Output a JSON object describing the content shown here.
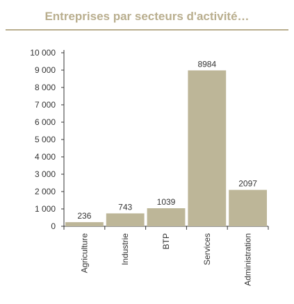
{
  "title": "Entreprises par secteurs d'activité…",
  "colors": {
    "bar": "#bdb698",
    "title": "#b9ae8e",
    "axis": "#333333"
  },
  "chart_data": {
    "type": "bar",
    "title": "Entreprises par secteurs d'activité…",
    "categories": [
      "Agriculture",
      "Industrie",
      "BTP",
      "Services",
      "Administration"
    ],
    "values": [
      236,
      743,
      1039,
      8984,
      2097
    ],
    "data_labels": [
      "236",
      "743",
      "1039",
      "8984",
      "2097"
    ],
    "yticks": [
      0,
      1000,
      2000,
      3000,
      4000,
      5000,
      6000,
      7000,
      8000,
      9000,
      10000
    ],
    "ytick_labels": [
      "0",
      "1 000",
      "2 000",
      "3 000",
      "4 000",
      "5 000",
      "6 000",
      "7 000",
      "8 000",
      "9 000",
      "10 000"
    ],
    "ylim": [
      0,
      10000
    ],
    "xlabel": "",
    "ylabel": "",
    "grid": false,
    "legend": "none"
  }
}
